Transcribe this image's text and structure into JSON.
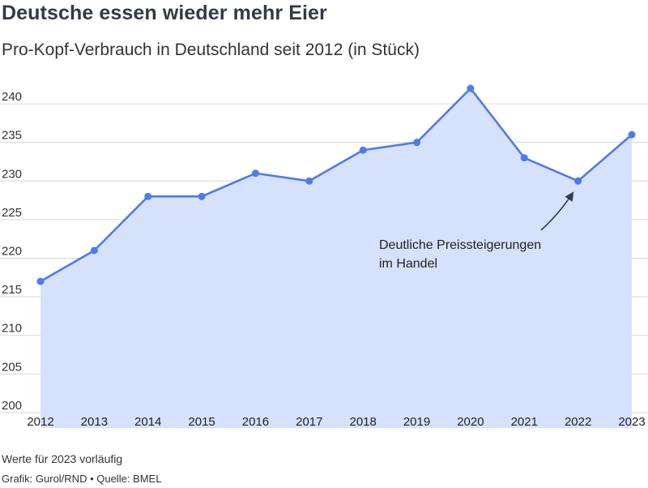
{
  "chart_data": {
    "type": "area",
    "title": "Deutsche essen wieder mehr Eier",
    "subtitle": "Pro-Kopf-Verbrauch in Deutschland seit 2012 (in Stück)",
    "x": [
      "2012",
      "2013",
      "2014",
      "2015",
      "2016",
      "2017",
      "2018",
      "2019",
      "2020",
      "2021",
      "2022",
      "2023"
    ],
    "series": [
      {
        "values": [
          217,
          221,
          228,
          228,
          231,
          230,
          234,
          235,
          242,
          233,
          230,
          236
        ]
      }
    ],
    "ylim": [
      198,
      243
    ],
    "yticks": [
      200,
      205,
      210,
      215,
      220,
      225,
      230,
      235,
      240
    ],
    "grid": true,
    "colors": {
      "line": "#4f7be8",
      "fill": "#d6e1fb",
      "grid": "#d6d6d6"
    },
    "annotation": {
      "target_x": "2022",
      "lines": [
        "Deutliche Preissteigerungen",
        "im Handel"
      ]
    }
  },
  "footer": {
    "note": "Werte für 2023 vorläufig",
    "source": "Grafik: Gurol/RND • Quelle: BMEL"
  }
}
